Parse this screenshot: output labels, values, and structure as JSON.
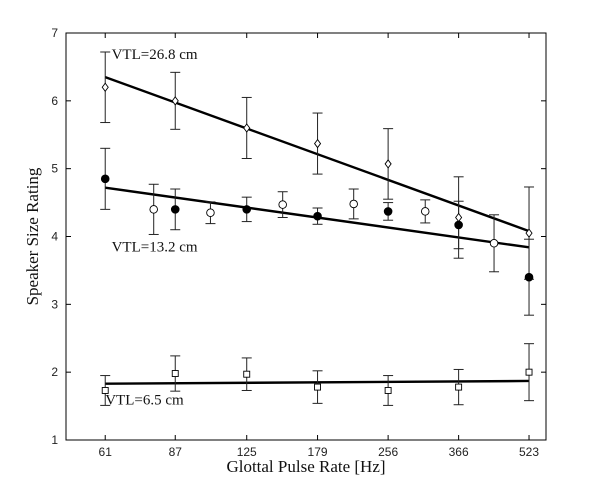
{
  "chart_data": {
    "type": "scatter",
    "xlabel": "Glottal Pulse Rate [Hz]",
    "ylabel": "Speaker Size Rating",
    "x_scale": "log",
    "xlim": [
      50,
      570
    ],
    "ylim": [
      1,
      7
    ],
    "x_ticks": [
      61,
      87,
      125,
      179,
      256,
      366,
      523
    ],
    "x_tick_labels": [
      "61",
      "87",
      "125",
      "179",
      "256",
      "366",
      "523"
    ],
    "y_ticks": [
      1,
      2,
      3,
      4,
      5,
      6,
      7
    ],
    "y_tick_labels": [
      "1",
      "2",
      "3",
      "4",
      "5",
      "6",
      "7"
    ],
    "grid": false,
    "annotations": [
      {
        "text": "VTL=26.8 cm",
        "x": 63,
        "y": 6.62
      },
      {
        "text": "VTL=13.2 cm",
        "x": 63,
        "y": 3.78
      },
      {
        "text": "VTL=6.5 cm",
        "x": 61,
        "y": 1.52
      }
    ],
    "series": [
      {
        "marker": "diamond-open",
        "x": [
          61,
          87,
          125,
          179,
          256,
          366,
          523
        ],
        "y": [
          6.2,
          6.0,
          5.6,
          5.37,
          5.07,
          4.28,
          4.05
        ],
        "err": [
          0.52,
          0.42,
          0.45,
          0.45,
          0.52,
          0.6,
          0.68
        ]
      },
      {
        "marker": "circle-filled",
        "x": [
          61,
          87,
          125,
          179,
          256,
          366,
          523
        ],
        "y": [
          4.85,
          4.4,
          4.4,
          4.3,
          4.37,
          4.17,
          3.4
        ],
        "err": [
          0.45,
          0.3,
          0.18,
          0.12,
          0.13,
          0.35,
          0.56
        ]
      },
      {
        "marker": "circle-open",
        "x": [
          78,
          104,
          150,
          215,
          309,
          438
        ],
        "y": [
          4.4,
          4.35,
          4.47,
          4.48,
          4.37,
          3.9
        ],
        "err": [
          0.37,
          0.16,
          0.19,
          0.22,
          0.17,
          0.42
        ]
      },
      {
        "marker": "square-open",
        "x": [
          61,
          87,
          125,
          179,
          256,
          366,
          523
        ],
        "y": [
          1.73,
          1.98,
          1.97,
          1.78,
          1.73,
          1.78,
          2.0
        ],
        "err": [
          0.22,
          0.26,
          0.24,
          0.24,
          0.22,
          0.26,
          0.42
        ]
      }
    ],
    "fit_lines": [
      {
        "x": [
          61,
          523
        ],
        "y": [
          6.35,
          4.08
        ]
      },
      {
        "x": [
          61,
          523
        ],
        "y": [
          4.72,
          3.84
        ]
      },
      {
        "x": [
          61,
          523
        ],
        "y": [
          1.83,
          1.87
        ]
      }
    ]
  }
}
